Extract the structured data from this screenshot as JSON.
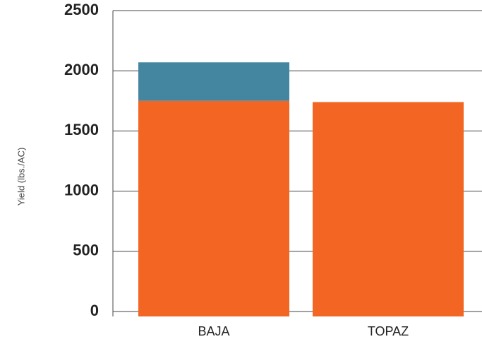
{
  "chart_data": {
    "type": "stacked_bar",
    "y_label": "Yield (lbs./AC)",
    "categories": [
      "BAJA",
      "TOPAZ"
    ],
    "series": [
      {
        "color": "#f26522",
        "values": [
          1750,
          1740
        ]
      },
      {
        "color": "#44869f",
        "values": [
          320,
          0
        ]
      }
    ],
    "ylim": [
      0,
      2500
    ],
    "yticks": [
      0,
      500,
      1000,
      1500,
      2000,
      2500
    ],
    "grid": true
  }
}
